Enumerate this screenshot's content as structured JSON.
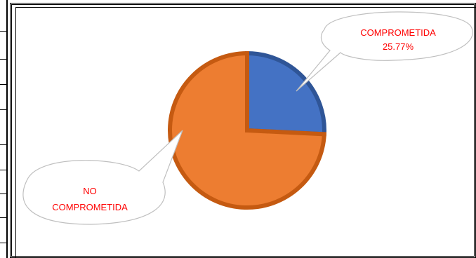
{
  "chart_data": {
    "type": "pie",
    "slices": [
      {
        "label": "COMPROMETIDA",
        "value": 25.77,
        "display_value": "25.77%",
        "color": "#4472C4"
      },
      {
        "label": "NO COMPROMETIDA",
        "value": 74.23,
        "display_value": "",
        "color": "#ED7D31"
      }
    ],
    "callouts": [
      {
        "lines": [
          "COMPROMETIDA",
          "25.77%"
        ]
      },
      {
        "lines": [
          "NO",
          "COMPROMETIDA"
        ]
      }
    ],
    "callout_text_color": "#ff0000",
    "legend": "none"
  }
}
